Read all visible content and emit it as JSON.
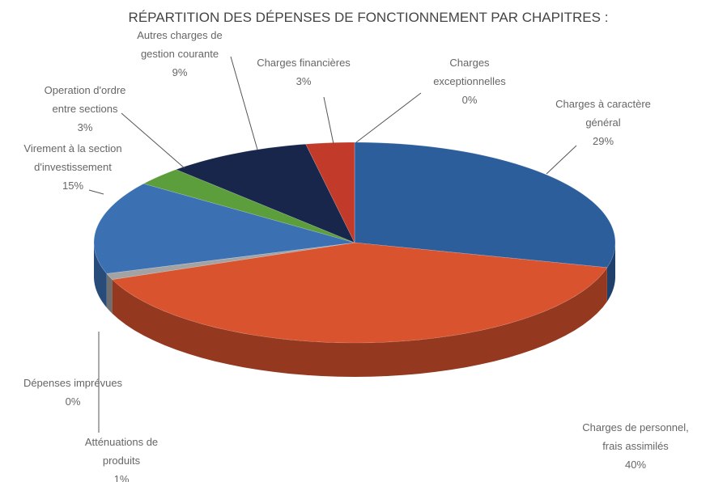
{
  "chart_data": {
    "type": "pie3d",
    "title": "RÉPARTITION DES DÉPENSES DE FONCTIONNEMENT PAR CHAPITRES :",
    "categories": [
      "Charges à caractère\ngénéral",
      "Charges de personnel,\nfrais assimilés",
      "Atténuations de\nproduits",
      "Dépenses imprévues",
      "Virement à la section\nd'investissement",
      "Operation d'ordre\nentre sections",
      "Autres charges de\ngestion courante",
      "Charges financières",
      "Charges\nexceptionnelles"
    ],
    "values": [
      29,
      40,
      1,
      0,
      15,
      3,
      9,
      3,
      0
    ],
    "value_labels": [
      "29%",
      "40%",
      "1%",
      "0%",
      "15%",
      "3%",
      "9%",
      "3%",
      "0%"
    ],
    "colors": [
      "#2d5e9c",
      "#d9532f",
      "#a3a3a3",
      "#c4c4c4",
      "#3b70b3",
      "#5c9e3c",
      "#17264a",
      "#c23a2a",
      "#9a8fb8"
    ]
  }
}
